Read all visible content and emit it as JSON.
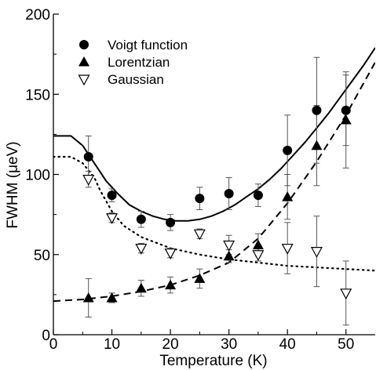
{
  "chart_data": {
    "type": "scatter",
    "xlabel": "Temperature (K)",
    "ylabel": "FWHM (μeV)",
    "xlim": [
      0,
      55
    ],
    "ylim": [
      0,
      200
    ],
    "x_ticks": [
      0,
      10,
      20,
      30,
      40,
      50
    ],
    "y_ticks": [
      0,
      50,
      100,
      150,
      200
    ],
    "legend_position": "top-left",
    "series": [
      {
        "name": "Voigt function",
        "marker": "filled-circle",
        "x": [
          6,
          10,
          15,
          20,
          25,
          30,
          35,
          40,
          45,
          50
        ],
        "y": [
          111,
          87,
          72,
          70,
          85,
          88,
          87,
          115,
          140,
          140
        ],
        "err": [
          13,
          4,
          5,
          5,
          7,
          10,
          7,
          22,
          33,
          22
        ]
      },
      {
        "name": "Lorentzian",
        "marker": "filled-triangle-up",
        "x": [
          6,
          10,
          15,
          20,
          25,
          30,
          35,
          40,
          45,
          50
        ],
        "y": [
          23,
          23,
          29,
          31,
          35,
          49,
          56,
          86,
          118,
          134
        ],
        "err": [
          12,
          3,
          5,
          5,
          6,
          4,
          7,
          14,
          25,
          30
        ]
      },
      {
        "name": "Gaussian",
        "marker": "open-triangle-down",
        "x": [
          6,
          10,
          15,
          20,
          25,
          30,
          35,
          40,
          45,
          50
        ],
        "y": [
          97,
          73,
          54,
          51,
          63,
          56,
          50,
          54,
          52,
          26
        ],
        "err": [
          5,
          3,
          3,
          3,
          3,
          6,
          4,
          16,
          22,
          20
        ]
      }
    ],
    "fit_curves": [
      {
        "series": "Voigt function",
        "style": "solid",
        "x": [
          0,
          3,
          5,
          7,
          9,
          11,
          13,
          15,
          17,
          19,
          21,
          23,
          25,
          27,
          29,
          31,
          33,
          35,
          37,
          39,
          41,
          43,
          45,
          47,
          49,
          51,
          53,
          55
        ],
        "y": [
          124,
          124,
          118,
          107,
          96,
          88,
          81,
          77,
          74,
          72,
          71,
          71,
          72,
          74,
          77,
          81,
          86,
          91,
          97,
          104,
          112,
          120,
          129,
          138,
          148,
          158,
          168,
          179
        ]
      },
      {
        "series": "Lorentzian",
        "style": "dashed",
        "x": [
          0,
          5,
          10,
          15,
          20,
          25,
          30,
          35,
          40,
          45,
          50,
          55
        ],
        "y": [
          21,
          22,
          24,
          27,
          31,
          37,
          45,
          60,
          82,
          108,
          137,
          170
        ]
      },
      {
        "series": "Gaussian",
        "style": "dotted",
        "x": [
          0,
          3,
          5,
          7,
          8,
          10,
          12,
          15,
          20,
          25,
          30,
          35,
          40,
          45,
          50,
          55
        ],
        "y": [
          111,
          111,
          107,
          98,
          90,
          77,
          68,
          61,
          54,
          50,
          47,
          45,
          43,
          42,
          41,
          40
        ]
      }
    ]
  }
}
